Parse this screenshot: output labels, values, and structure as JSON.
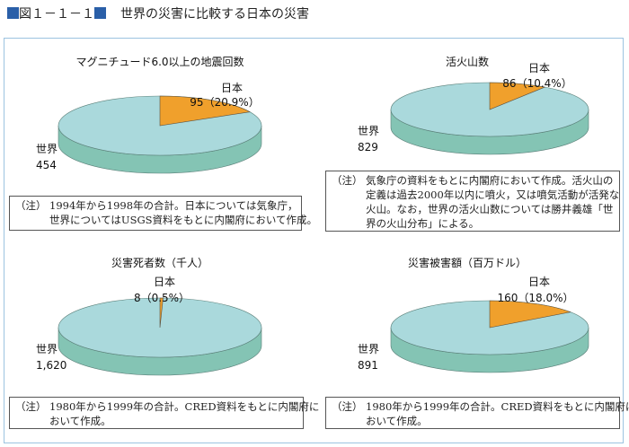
{
  "header": {
    "figure_no": "図１－１－１",
    "title": "世界の災害に比較する日本の災害"
  },
  "colors": {
    "japan": "#f0a02c",
    "world_top": "#aad9dc",
    "world_side": "#84c4b4",
    "frame": "#9cc3e0"
  },
  "chart_data": [
    {
      "type": "pie",
      "title": "マグニチュード6.0以上の地震回数",
      "slices": [
        {
          "name": "日本",
          "value": 95,
          "label": "95（20.9%）",
          "percent": 20.9
        },
        {
          "name": "世界",
          "value": 454,
          "label": "454"
        }
      ],
      "note": {
        "prefix": "（注）",
        "lines": [
          "1994年から1998年の合計。日本については気象庁，",
          "世界についてはUSGS資料をもとに内閣府において作成。"
        ]
      }
    },
    {
      "type": "pie",
      "title": "活火山数",
      "slices": [
        {
          "name": "日本",
          "value": 86,
          "label": "86（10.4%）",
          "percent": 10.4
        },
        {
          "name": "世界",
          "value": 829,
          "label": "829"
        }
      ],
      "note": {
        "prefix": "（注）",
        "lines": [
          "気象庁の資料をもとに内閣府において作成。活火山の",
          "定義は過去2000年以内に噴火，又は噴気活動が活発な",
          "火山。なお，世界の活火山数については勝井義雄「世",
          "界の火山分布」による。"
        ]
      }
    },
    {
      "type": "pie",
      "title": "災害死者数（千人）",
      "slices": [
        {
          "name": "日本",
          "value": 8,
          "label": "8（0.5%）",
          "percent": 0.5
        },
        {
          "name": "世界",
          "value": 1620,
          "label": "1,620"
        }
      ],
      "note": {
        "prefix": "（注）",
        "lines": [
          "1980年から1999年の合計。CRED資料をもとに内閣府に",
          "おいて作成。"
        ]
      }
    },
    {
      "type": "pie",
      "title": "災害被害額（百万ドル）",
      "slices": [
        {
          "name": "日本",
          "value": 160,
          "label": "160（18.0%）",
          "percent": 18.0
        },
        {
          "name": "世界",
          "value": 891,
          "label": "891"
        }
      ],
      "note": {
        "prefix": "（注）",
        "lines": [
          "1980年から1999年の合計。CRED資料をもとに内閣府に",
          "おいて作成。"
        ]
      }
    }
  ]
}
